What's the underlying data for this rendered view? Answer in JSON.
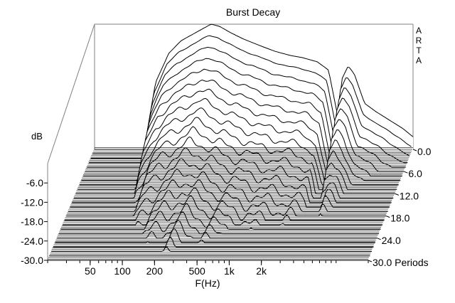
{
  "chart_data": {
    "type": "waterfall-3d",
    "title": "Burst Decay",
    "watermark": "ARTA",
    "xlabel": "F(Hz)",
    "ylabel": "dB",
    "zlabel_unit": "Periods",
    "x_ticks": [
      "50",
      "100",
      "200",
      "500",
      "1k",
      "2k"
    ],
    "x_tick_values": [
      50,
      100,
      200,
      500,
      1000,
      2000
    ],
    "xlim": [
      20,
      20000
    ],
    "y_ticks": [
      "-6.0",
      "-12.0",
      "-18.0",
      "-24.0",
      "-30.0"
    ],
    "y_tick_values": [
      -6,
      -12,
      -18,
      -24,
      -30
    ],
    "ylim": [
      -30,
      0
    ],
    "z_ticks": [
      "0.0",
      "6.0",
      "12.0",
      "18.0",
      "24.0",
      "30.0"
    ],
    "z_tick_values": [
      0,
      6,
      12,
      18,
      24,
      30
    ],
    "zlim": [
      0,
      30
    ],
    "front_slice_profile": {
      "freq_hz": [
        20,
        50,
        58,
        62,
        75,
        100,
        130,
        180,
        250,
        300,
        380,
        500,
        700,
        1000,
        1400,
        1800,
        2500,
        3200,
        3500,
        3900,
        4300,
        4900,
        5600,
        7000,
        9000,
        12000,
        16000,
        20000
      ],
      "level_db": [
        -34,
        -34,
        -34,
        -27,
        -14,
        -7,
        -4,
        -2,
        0,
        -0.5,
        -2,
        -3.5,
        -5,
        -6.5,
        -7.5,
        -8,
        -9,
        -11,
        -16,
        -22,
        -13,
        -10,
        -12,
        -19,
        -21,
        -23,
        -25,
        -27
      ]
    }
  }
}
